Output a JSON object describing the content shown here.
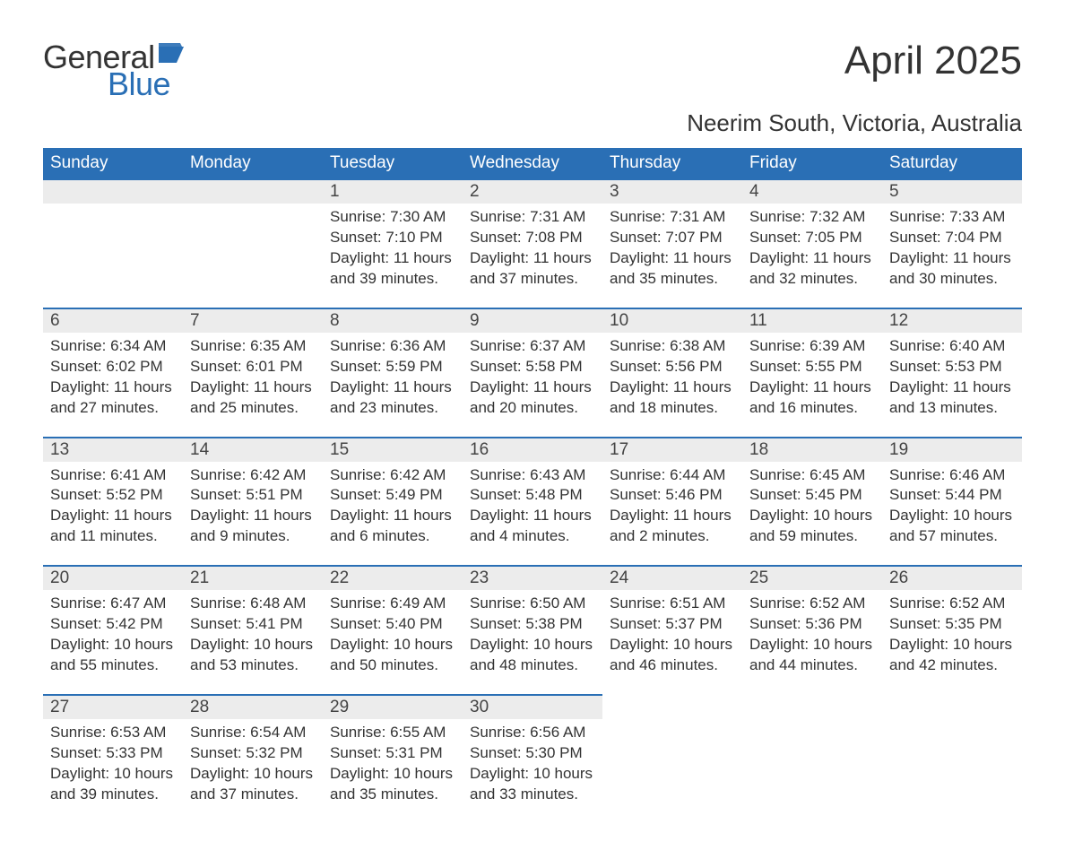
{
  "logo": {
    "word1": "General",
    "word2": "Blue",
    "flag_color": "#2a6fb5"
  },
  "title": "April 2025",
  "subtitle": "Neerim South, Victoria, Australia",
  "colors": {
    "header_bg": "#2a6fb5",
    "header_text": "#ffffff",
    "daynum_bg": "#ececec",
    "row_border": "#2a6fb5",
    "body_text": "#333333",
    "page_bg": "#ffffff"
  },
  "typography": {
    "title_fontsize": 44,
    "subtitle_fontsize": 26,
    "header_fontsize": 19,
    "daynum_fontsize": 19,
    "body_fontsize": 17,
    "logo_fontsize": 36
  },
  "day_headers": [
    "Sunday",
    "Monday",
    "Tuesday",
    "Wednesday",
    "Thursday",
    "Friday",
    "Saturday"
  ],
  "weeks": [
    [
      null,
      null,
      {
        "n": "1",
        "sunrise": "7:30 AM",
        "sunset": "7:10 PM",
        "daylight": "11 hours and 39 minutes."
      },
      {
        "n": "2",
        "sunrise": "7:31 AM",
        "sunset": "7:08 PM",
        "daylight": "11 hours and 37 minutes."
      },
      {
        "n": "3",
        "sunrise": "7:31 AM",
        "sunset": "7:07 PM",
        "daylight": "11 hours and 35 minutes."
      },
      {
        "n": "4",
        "sunrise": "7:32 AM",
        "sunset": "7:05 PM",
        "daylight": "11 hours and 32 minutes."
      },
      {
        "n": "5",
        "sunrise": "7:33 AM",
        "sunset": "7:04 PM",
        "daylight": "11 hours and 30 minutes."
      }
    ],
    [
      {
        "n": "6",
        "sunrise": "6:34 AM",
        "sunset": "6:02 PM",
        "daylight": "11 hours and 27 minutes."
      },
      {
        "n": "7",
        "sunrise": "6:35 AM",
        "sunset": "6:01 PM",
        "daylight": "11 hours and 25 minutes."
      },
      {
        "n": "8",
        "sunrise": "6:36 AM",
        "sunset": "5:59 PM",
        "daylight": "11 hours and 23 minutes."
      },
      {
        "n": "9",
        "sunrise": "6:37 AM",
        "sunset": "5:58 PM",
        "daylight": "11 hours and 20 minutes."
      },
      {
        "n": "10",
        "sunrise": "6:38 AM",
        "sunset": "5:56 PM",
        "daylight": "11 hours and 18 minutes."
      },
      {
        "n": "11",
        "sunrise": "6:39 AM",
        "sunset": "5:55 PM",
        "daylight": "11 hours and 16 minutes."
      },
      {
        "n": "12",
        "sunrise": "6:40 AM",
        "sunset": "5:53 PM",
        "daylight": "11 hours and 13 minutes."
      }
    ],
    [
      {
        "n": "13",
        "sunrise": "6:41 AM",
        "sunset": "5:52 PM",
        "daylight": "11 hours and 11 minutes."
      },
      {
        "n": "14",
        "sunrise": "6:42 AM",
        "sunset": "5:51 PM",
        "daylight": "11 hours and 9 minutes."
      },
      {
        "n": "15",
        "sunrise": "6:42 AM",
        "sunset": "5:49 PM",
        "daylight": "11 hours and 6 minutes."
      },
      {
        "n": "16",
        "sunrise": "6:43 AM",
        "sunset": "5:48 PM",
        "daylight": "11 hours and 4 minutes."
      },
      {
        "n": "17",
        "sunrise": "6:44 AM",
        "sunset": "5:46 PM",
        "daylight": "11 hours and 2 minutes."
      },
      {
        "n": "18",
        "sunrise": "6:45 AM",
        "sunset": "5:45 PM",
        "daylight": "10 hours and 59 minutes."
      },
      {
        "n": "19",
        "sunrise": "6:46 AM",
        "sunset": "5:44 PM",
        "daylight": "10 hours and 57 minutes."
      }
    ],
    [
      {
        "n": "20",
        "sunrise": "6:47 AM",
        "sunset": "5:42 PM",
        "daylight": "10 hours and 55 minutes."
      },
      {
        "n": "21",
        "sunrise": "6:48 AM",
        "sunset": "5:41 PM",
        "daylight": "10 hours and 53 minutes."
      },
      {
        "n": "22",
        "sunrise": "6:49 AM",
        "sunset": "5:40 PM",
        "daylight": "10 hours and 50 minutes."
      },
      {
        "n": "23",
        "sunrise": "6:50 AM",
        "sunset": "5:38 PM",
        "daylight": "10 hours and 48 minutes."
      },
      {
        "n": "24",
        "sunrise": "6:51 AM",
        "sunset": "5:37 PM",
        "daylight": "10 hours and 46 minutes."
      },
      {
        "n": "25",
        "sunrise": "6:52 AM",
        "sunset": "5:36 PM",
        "daylight": "10 hours and 44 minutes."
      },
      {
        "n": "26",
        "sunrise": "6:52 AM",
        "sunset": "5:35 PM",
        "daylight": "10 hours and 42 minutes."
      }
    ],
    [
      {
        "n": "27",
        "sunrise": "6:53 AM",
        "sunset": "5:33 PM",
        "daylight": "10 hours and 39 minutes."
      },
      {
        "n": "28",
        "sunrise": "6:54 AM",
        "sunset": "5:32 PM",
        "daylight": "10 hours and 37 minutes."
      },
      {
        "n": "29",
        "sunrise": "6:55 AM",
        "sunset": "5:31 PM",
        "daylight": "10 hours and 35 minutes."
      },
      {
        "n": "30",
        "sunrise": "6:56 AM",
        "sunset": "5:30 PM",
        "daylight": "10 hours and 33 minutes."
      },
      null,
      null,
      null
    ]
  ],
  "labels": {
    "sunrise": "Sunrise:",
    "sunset": "Sunset:",
    "daylight": "Daylight:"
  }
}
